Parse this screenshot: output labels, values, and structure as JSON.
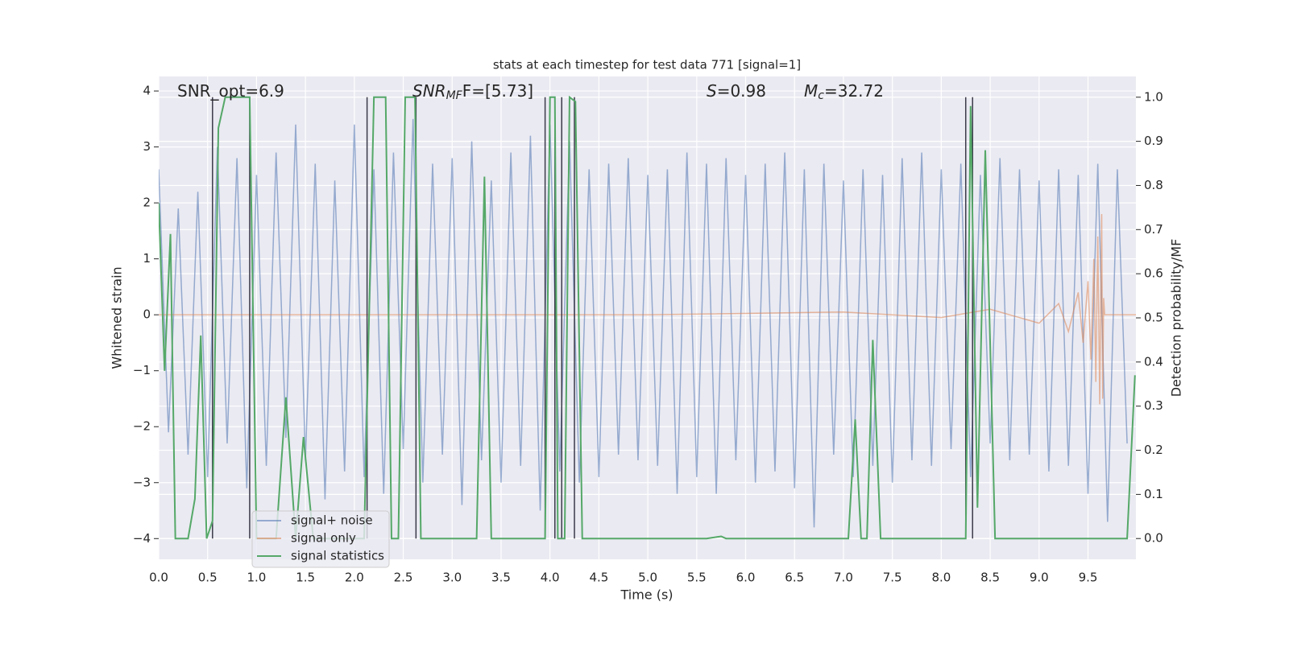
{
  "chart_data": {
    "type": "line",
    "title": "stats at each timestep for test data 771 [signal=1]",
    "xlabel": "Time (s)",
    "ylabel": "Whitened strain",
    "y2label": "Detection probability/MF",
    "xlim": [
      0,
      9.99
    ],
    "ylim": [
      -4.37,
      4.26
    ],
    "y2lim": [
      -0.047,
      1.047
    ],
    "xticks": [
      {
        "value": 0,
        "label": "0.0"
      },
      {
        "value": 0.5,
        "label": "0.5"
      },
      {
        "value": 1,
        "label": "1.0"
      },
      {
        "value": 1.5,
        "label": "1.5"
      },
      {
        "value": 2,
        "label": "2.0"
      },
      {
        "value": 2.5,
        "label": "2.5"
      },
      {
        "value": 3,
        "label": "3.0"
      },
      {
        "value": 3.5,
        "label": "3.5"
      },
      {
        "value": 4,
        "label": "4.0"
      },
      {
        "value": 4.5,
        "label": "4.5"
      },
      {
        "value": 5,
        "label": "5.0"
      },
      {
        "value": 5.5,
        "label": "5.5"
      },
      {
        "value": 6,
        "label": "6.0"
      },
      {
        "value": 6.5,
        "label": "6.5"
      },
      {
        "value": 7,
        "label": "7.0"
      },
      {
        "value": 7.5,
        "label": "7.5"
      },
      {
        "value": 8,
        "label": "8.0"
      },
      {
        "value": 8.5,
        "label": "8.5"
      },
      {
        "value": 9,
        "label": "9.0"
      },
      {
        "value": 9.5,
        "label": "9.5"
      }
    ],
    "yticks": [
      {
        "value": -4,
        "label": "−4"
      },
      {
        "value": -3,
        "label": "−3"
      },
      {
        "value": -2,
        "label": "−2"
      },
      {
        "value": -1,
        "label": "−1"
      },
      0,
      1,
      2,
      3,
      4
    ],
    "y2ticks": [
      {
        "value": 0,
        "label": "0.0"
      },
      {
        "value": 0.1,
        "label": "0.1"
      },
      {
        "value": 0.2,
        "label": "0.2"
      },
      {
        "value": 0.3,
        "label": "0.3"
      },
      {
        "value": 0.4,
        "label": "0.4"
      },
      {
        "value": 0.5,
        "label": "0.5"
      },
      {
        "value": 0.6,
        "label": "0.6"
      },
      {
        "value": 0.7,
        "label": "0.7"
      },
      {
        "value": 0.8,
        "label": "0.8"
      },
      {
        "value": 0.9,
        "label": "0.9"
      },
      {
        "value": 1,
        "label": "1.0"
      }
    ],
    "grid": true,
    "legend": "lower left",
    "annotations": [
      {
        "label": "SNR_opt=6.9"
      },
      {
        "label": "SNR",
        "sub": "MF",
        "rest": "F=[5.73]"
      },
      {
        "label": "S",
        "rest": "=0.98"
      },
      {
        "label": "M",
        "sub": "c",
        "rest": "=32.72"
      }
    ],
    "vlines": {
      "x": [
        0.55,
        0.93,
        2.13,
        2.63,
        3.95,
        4.05,
        4.12,
        4.25,
        8.25,
        8.32
      ],
      "range": [
        0,
        1
      ],
      "color": "#3a3a4a"
    },
    "series": [
      {
        "name": "signal+ noise",
        "color": "#4c72b0",
        "x": [
          0,
          0.1,
          0.2,
          0.3,
          0.4,
          0.5,
          0.6,
          0.7,
          0.8,
          0.9,
          1,
          1.1,
          1.2,
          1.3,
          1.4,
          1.5,
          1.6,
          1.7,
          1.8,
          1.9,
          2,
          2.1,
          2.2,
          2.3,
          2.4,
          2.5,
          2.6,
          2.7,
          2.8,
          2.9,
          3,
          3.1,
          3.2,
          3.3,
          3.4,
          3.5,
          3.6,
          3.7,
          3.8,
          3.9,
          4,
          4.1,
          4.2,
          4.3,
          4.4,
          4.5,
          4.6,
          4.7,
          4.8,
          4.9,
          5,
          5.1,
          5.2,
          5.3,
          5.4,
          5.5,
          5.6,
          5.7,
          5.8,
          5.9,
          6,
          6.1,
          6.2,
          6.3,
          6.4,
          6.5,
          6.6,
          6.7,
          6.8,
          6.9,
          7,
          7.1,
          7.2,
          7.3,
          7.4,
          7.5,
          7.6,
          7.7,
          7.8,
          7.9,
          8,
          8.1,
          8.2,
          8.3,
          8.4,
          8.5,
          8.6,
          8.7,
          8.8,
          8.9,
          9,
          9.1,
          9.2,
          9.3,
          9.4,
          9.5,
          9.6,
          9.7,
          9.8,
          9.9
        ],
        "values": [
          2.6,
          -2.1,
          1.9,
          -2.5,
          2.2,
          -2.9,
          3.0,
          -2.3,
          2.8,
          -3.1,
          2.5,
          -2.7,
          2.9,
          -2.2,
          3.4,
          -2.6,
          2.7,
          -3.3,
          2.4,
          -2.8,
          3.4,
          -2.9,
          2.6,
          -3.2,
          2.9,
          -2.4,
          3.5,
          -3.0,
          2.7,
          -2.5,
          2.8,
          -3.4,
          3.1,
          -2.6,
          2.4,
          -3.0,
          2.9,
          -2.7,
          3.2,
          -3.5,
          3.4,
          -2.8,
          3.1,
          -3.0,
          2.6,
          -2.9,
          2.7,
          -2.5,
          2.8,
          -2.6,
          2.5,
          -2.7,
          2.6,
          -3.2,
          2.9,
          -2.9,
          2.7,
          -3.2,
          2.8,
          -2.6,
          2.5,
          -3.0,
          2.7,
          -2.8,
          2.9,
          -3.1,
          2.6,
          -3.8,
          2.7,
          -2.5,
          2.4,
          -2.9,
          2.6,
          -2.7,
          2.5,
          -3.0,
          2.8,
          -2.6,
          2.9,
          -2.7,
          2.6,
          -2.4,
          2.7,
          -2.9,
          2.5,
          -2.3,
          2.8,
          -2.6,
          2.6,
          -2.5,
          2.4,
          -2.8,
          2.6,
          -2.7,
          2.5,
          -3.2,
          2.7,
          -3.7,
          2.6,
          -2.3
        ]
      },
      {
        "name": "signal only",
        "color": "#dd8452",
        "x": [
          0,
          5,
          7,
          8,
          8.5,
          9,
          9.2,
          9.3,
          9.4,
          9.45,
          9.5,
          9.53,
          9.56,
          9.58,
          9.6,
          9.62,
          9.64,
          9.65,
          9.66,
          9.67,
          9.99
        ],
        "values": [
          0,
          0,
          0.05,
          -0.05,
          0.1,
          -0.15,
          0.2,
          -0.3,
          0.4,
          -0.5,
          0.6,
          -0.8,
          1.0,
          -1.2,
          1.4,
          -1.6,
          1.8,
          -1.5,
          0.3,
          0,
          0
        ]
      },
      {
        "name": "signal statistics",
        "color": "#55a868",
        "axis": "y2",
        "x": [
          0,
          0.06,
          0.12,
          0.17,
          0.3,
          0.37,
          0.43,
          0.49,
          0.55,
          0.61,
          0.68,
          0.93,
          1.0,
          1.2,
          1.3,
          1.4,
          1.48,
          1.58,
          2.1,
          2.2,
          2.32,
          2.38,
          2.45,
          2.52,
          2.62,
          2.68,
          3.25,
          3.33,
          3.4,
          3.95,
          4.0,
          4.05,
          4.08,
          4.15,
          4.2,
          4.26,
          4.33,
          5.6,
          5.75,
          5.8,
          7.05,
          7.12,
          7.18,
          7.24,
          7.3,
          7.38,
          8.25,
          8.3,
          8.37,
          8.45,
          8.55,
          9.9,
          9.98
        ],
        "values": [
          0.76,
          0.38,
          0.69,
          0,
          0,
          0.09,
          0.46,
          0,
          0.04,
          0.93,
          1.0,
          1.0,
          0,
          0,
          0.32,
          0,
          0.23,
          0,
          0,
          1.0,
          1.0,
          0,
          0,
          1.0,
          1.0,
          0,
          0,
          0.82,
          0,
          0,
          1.0,
          1.0,
          0,
          0,
          1.0,
          0.99,
          0,
          0,
          0.005,
          0,
          0,
          0.27,
          0,
          0,
          0.45,
          0,
          0,
          0.98,
          0.07,
          0.88,
          0,
          0,
          0.37
        ]
      }
    ]
  }
}
